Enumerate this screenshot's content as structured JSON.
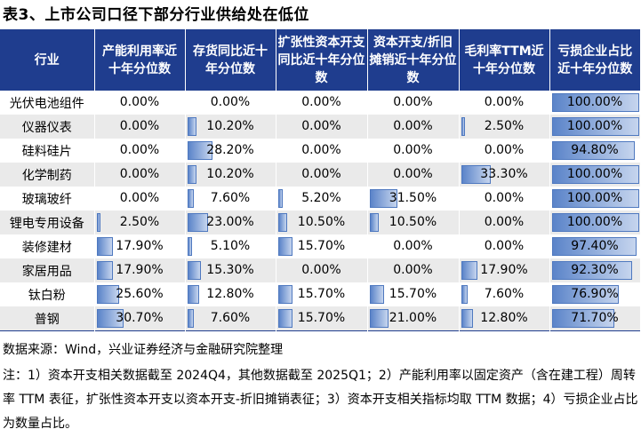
{
  "title": "表3、上市公司口径下部分行业供给处在低位",
  "columns": [
    "行业",
    "产能利用率近十年分位数",
    "存货同比近十年分位数",
    "扩张性资本开支同比近十年分位数",
    "资本开支/折旧摊销近十年分位数",
    "毛利率TTM近十年分位数",
    "亏损企业占比近十年分位数"
  ],
  "rows": [
    {
      "name": "光伏电池组件",
      "values": [
        "0.00%",
        "0.00%",
        "0.00%",
        "0.00%",
        "0.00%",
        "100.00%"
      ],
      "pct": [
        0,
        0,
        0,
        0,
        0,
        100
      ]
    },
    {
      "name": "仪器仪表",
      "values": [
        "0.00%",
        "10.20%",
        "0.00%",
        "0.00%",
        "2.50%",
        "100.00%"
      ],
      "pct": [
        0,
        10.2,
        0,
        0,
        2.5,
        100
      ]
    },
    {
      "name": "硅料硅片",
      "values": [
        "0.00%",
        "28.20%",
        "0.00%",
        "0.00%",
        "0.00%",
        "94.80%"
      ],
      "pct": [
        0,
        28.2,
        0,
        0,
        0,
        94.8
      ]
    },
    {
      "name": "化学制药",
      "values": [
        "0.00%",
        "10.20%",
        "0.00%",
        "0.00%",
        "33.30%",
        "100.00%"
      ],
      "pct": [
        0,
        10.2,
        0,
        0,
        33.3,
        100
      ]
    },
    {
      "name": "玻璃玻纤",
      "values": [
        "0.00%",
        "7.60%",
        "5.20%",
        "31.50%",
        "0.00%",
        "100.00%"
      ],
      "pct": [
        0,
        7.6,
        5.2,
        31.5,
        0,
        100
      ]
    },
    {
      "name": "锂电专用设备",
      "values": [
        "2.50%",
        "23.00%",
        "10.50%",
        "10.50%",
        "0.00%",
        "100.00%"
      ],
      "pct": [
        2.5,
        23,
        10.5,
        10.5,
        0,
        100
      ]
    },
    {
      "name": "装修建材",
      "values": [
        "17.90%",
        "5.10%",
        "15.70%",
        "0.00%",
        "0.00%",
        "97.40%"
      ],
      "pct": [
        17.9,
        5.1,
        15.7,
        0,
        0,
        97.4
      ]
    },
    {
      "name": "家居用品",
      "values": [
        "17.90%",
        "15.30%",
        "0.00%",
        "0.00%",
        "17.90%",
        "92.30%"
      ],
      "pct": [
        17.9,
        15.3,
        0,
        0,
        17.9,
        92.3
      ]
    },
    {
      "name": "钛白粉",
      "values": [
        "25.60%",
        "12.80%",
        "15.70%",
        "15.70%",
        "7.60%",
        "76.90%"
      ],
      "pct": [
        25.6,
        12.8,
        15.7,
        15.7,
        7.6,
        76.9
      ]
    },
    {
      "name": "普钢",
      "values": [
        "30.70%",
        "7.60%",
        "15.70%",
        "21.00%",
        "12.80%",
        "71.70%"
      ],
      "pct": [
        30.7,
        7.6,
        15.7,
        21,
        12.8,
        71.7
      ]
    }
  ],
  "source": "数据来源：Wind，兴业证券经济与金融研究院整理",
  "note": "注：1）资本开支相关数据截至 2024Q4，其他数据截至 2025Q1；2）产能利用率以固定资产（含在建工程）周转率 TTM 表征，扩张性资本开支以资本开支-折旧摊销表征；3）资本开支相关指标均取 TTM 数据；4）亏损企业占比为数量占比。"
}
